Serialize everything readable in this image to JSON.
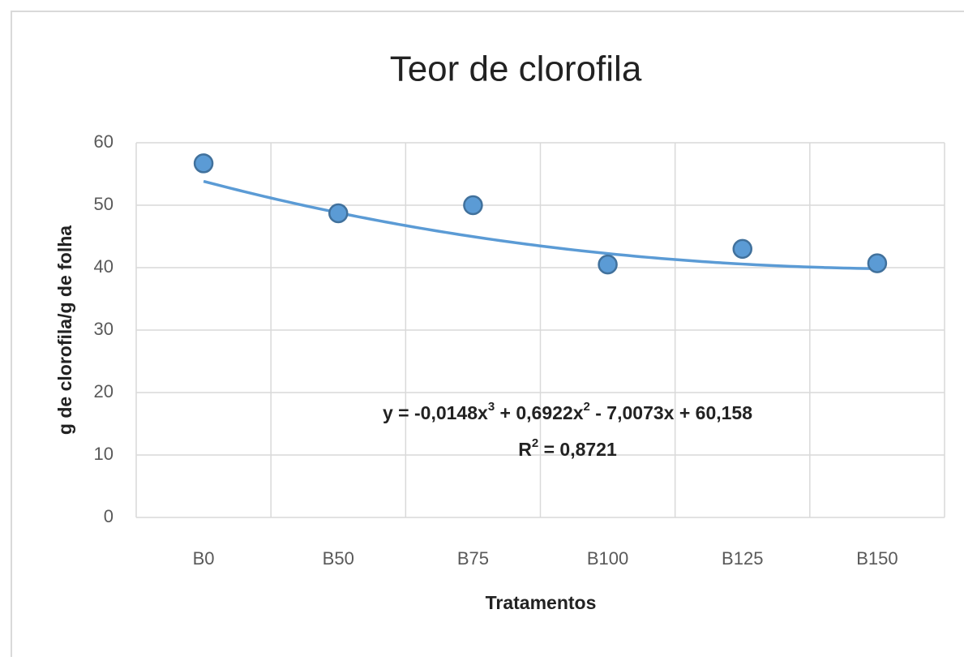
{
  "chart_data": {
    "type": "scatter",
    "title": "Teor de clorofila",
    "x_label": "Tratamentos",
    "y_label": "g de clorofila/g de folha",
    "categories": [
      "B0",
      "B50",
      "B75",
      "B100",
      "B125",
      "B150"
    ],
    "values": [
      56.7,
      48.7,
      50,
      40.5,
      43,
      40.7
    ],
    "color": "#5b9bd5",
    "ylim": [
      0,
      60
    ],
    "yticks": [
      0,
      10,
      20,
      30,
      40,
      50,
      60
    ],
    "grid": true,
    "trendline": {
      "type": "polynomial",
      "coefficients": [
        -0.0148,
        0.6922,
        -7.0073,
        60.158
      ],
      "color": "#5b9bd5",
      "equation_parts": [
        "y = -0,0148x",
        "3",
        " + 0,6922x",
        "2",
        " - 7,0073x + 60,158"
      ],
      "r2_parts": [
        "R",
        "2",
        " = 0,8721"
      ]
    }
  }
}
